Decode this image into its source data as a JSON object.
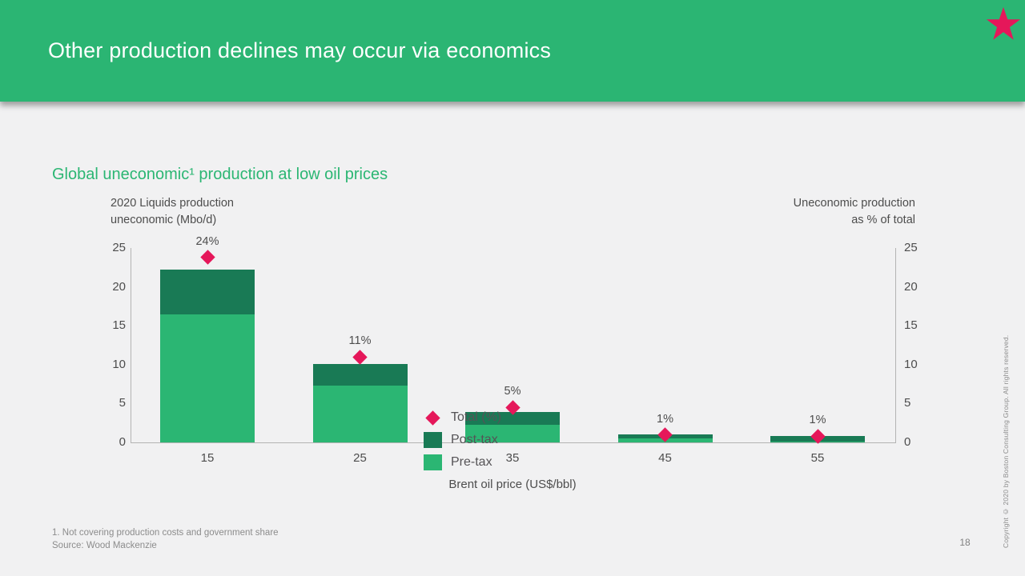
{
  "slide": {
    "title": "Other production declines may occur via economics",
    "page_number": "18",
    "copyright_vertical": "Copyright © 2020 by Boston Consulting Group. All rights reserved.",
    "footnote": "1. Not covering production costs and government share",
    "source": "Source: Wood Mackenzie"
  },
  "colors": {
    "header_green": "#2bb573",
    "pre_tax_green": "#2bb673",
    "post_tax_green": "#197a55",
    "marker_pink": "#e5175a",
    "axis_gray": "#b3b3b3",
    "text_gray": "#4d4d4d",
    "background": "#f1f1f2"
  },
  "chart": {
    "title": "Global uneconomic¹ production at low oil prices",
    "left_axis_title_line1": "2020 Liquids production",
    "left_axis_title_line2": "uneconomic (Mbo/d)",
    "right_axis_title_line1": "Uneconomic production",
    "right_axis_title_line2": "as % of total"
  },
  "chart_data": {
    "type": "bar",
    "stacked": true,
    "title": "Global uneconomic production at low oil prices",
    "xlabel": "Brent oil price (US$/bbl)",
    "ylabel_left": "2020 Liquids production uneconomic (Mbo/d)",
    "ylabel_right": "Uneconomic production as % of total",
    "categories": [
      "15",
      "25",
      "35",
      "45",
      "55"
    ],
    "series": [
      {
        "name": "Pre-tax",
        "color": "#2bb673",
        "values": [
          16.5,
          7.3,
          2.3,
          0.5,
          0.1
        ]
      },
      {
        "name": "Post-tax",
        "color": "#197a55",
        "values": [
          5.7,
          2.8,
          1.6,
          0.5,
          0.7
        ]
      }
    ],
    "markers": {
      "name": "Total (%)",
      "color": "#e5175a",
      "values_pct": [
        24,
        11,
        5,
        1,
        1
      ],
      "plot_values": [
        23.8,
        11.0,
        4.5,
        0.95,
        0.8
      ],
      "labels": [
        "24%",
        "11%",
        "5%",
        "1%",
        "1%"
      ]
    },
    "y_ticks": [
      0,
      5,
      10,
      15,
      20,
      25
    ],
    "ylim": [
      0,
      25
    ],
    "grid": false,
    "legend": [
      "Total (%)",
      "Post-tax",
      "Pre-tax"
    ],
    "legend_position": "inside-bottom-center"
  }
}
